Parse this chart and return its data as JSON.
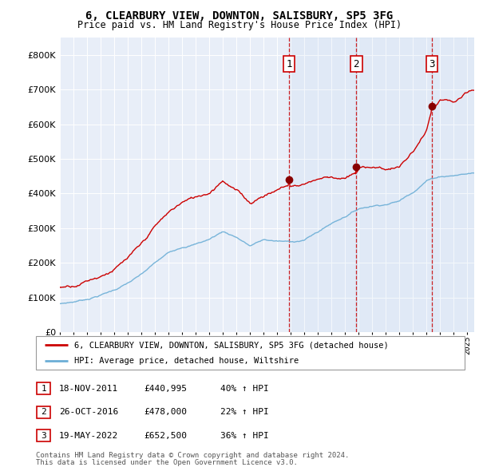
{
  "title": "6, CLEARBURY VIEW, DOWNTON, SALISBURY, SP5 3FG",
  "subtitle": "Price paid vs. HM Land Registry's House Price Index (HPI)",
  "footer1": "Contains HM Land Registry data © Crown copyright and database right 2024.",
  "footer2": "This data is licensed under the Open Government Licence v3.0.",
  "legend_line1": "6, CLEARBURY VIEW, DOWNTON, SALISBURY, SP5 3FG (detached house)",
  "legend_line2": "HPI: Average price, detached house, Wiltshire",
  "sales": [
    {
      "label": "1",
      "date": "18-NOV-2011",
      "price": 440995,
      "pct": "40%",
      "dir": "↑",
      "x_year": 2011.88
    },
    {
      "label": "2",
      "date": "26-OCT-2016",
      "price": 478000,
      "pct": "22%",
      "dir": "↑",
      "x_year": 2016.82
    },
    {
      "label": "3",
      "date": "19-MAY-2022",
      "price": 652500,
      "pct": "36%",
      "dir": "↑",
      "x_year": 2022.38
    }
  ],
  "hpi_color": "#6baed6",
  "price_color": "#cc0000",
  "background_color": "#e8eef8",
  "ylim": [
    0,
    850000
  ],
  "xlim_start": 1995.0,
  "xlim_end": 2025.5,
  "hpi_keypoints": [
    [
      1995.0,
      82000
    ],
    [
      1996.0,
      88000
    ],
    [
      1997.0,
      97000
    ],
    [
      1998.0,
      110000
    ],
    [
      1999.0,
      125000
    ],
    [
      2000.0,
      145000
    ],
    [
      2001.0,
      168000
    ],
    [
      2002.0,
      200000
    ],
    [
      2003.0,
      228000
    ],
    [
      2004.0,
      248000
    ],
    [
      2005.0,
      258000
    ],
    [
      2006.0,
      272000
    ],
    [
      2007.0,
      295000
    ],
    [
      2008.0,
      280000
    ],
    [
      2009.0,
      255000
    ],
    [
      2010.0,
      272000
    ],
    [
      2011.0,
      268000
    ],
    [
      2012.0,
      265000
    ],
    [
      2013.0,
      272000
    ],
    [
      2014.0,
      295000
    ],
    [
      2015.0,
      320000
    ],
    [
      2016.0,
      342000
    ],
    [
      2017.0,
      365000
    ],
    [
      2018.0,
      375000
    ],
    [
      2019.0,
      382000
    ],
    [
      2020.0,
      392000
    ],
    [
      2021.0,
      420000
    ],
    [
      2022.0,
      455000
    ],
    [
      2023.0,
      468000
    ],
    [
      2024.0,
      472000
    ],
    [
      2025.5,
      480000
    ]
  ],
  "prop_keypoints": [
    [
      1995.0,
      130000
    ],
    [
      1996.0,
      140000
    ],
    [
      1997.0,
      158000
    ],
    [
      1998.0,
      175000
    ],
    [
      1999.0,
      198000
    ],
    [
      2000.0,
      225000
    ],
    [
      2001.0,
      258000
    ],
    [
      2002.0,
      308000
    ],
    [
      2003.0,
      345000
    ],
    [
      2004.0,
      375000
    ],
    [
      2005.0,
      388000
    ],
    [
      2006.0,
      405000
    ],
    [
      2007.0,
      448000
    ],
    [
      2008.0,
      418000
    ],
    [
      2009.0,
      382000
    ],
    [
      2010.0,
      408000
    ],
    [
      2011.0,
      425000
    ],
    [
      2011.88,
      440995
    ],
    [
      2012.0,
      435000
    ],
    [
      2013.0,
      445000
    ],
    [
      2014.0,
      462000
    ],
    [
      2015.0,
      470000
    ],
    [
      2016.0,
      468000
    ],
    [
      2016.82,
      478000
    ],
    [
      2017.0,
      490000
    ],
    [
      2018.0,
      498000
    ],
    [
      2019.0,
      492000
    ],
    [
      2020.0,
      500000
    ],
    [
      2021.0,
      540000
    ],
    [
      2022.0,
      600000
    ],
    [
      2022.38,
      652500
    ],
    [
      2023.0,
      680000
    ],
    [
      2024.0,
      670000
    ],
    [
      2025.0,
      690000
    ],
    [
      2025.5,
      695000
    ]
  ]
}
